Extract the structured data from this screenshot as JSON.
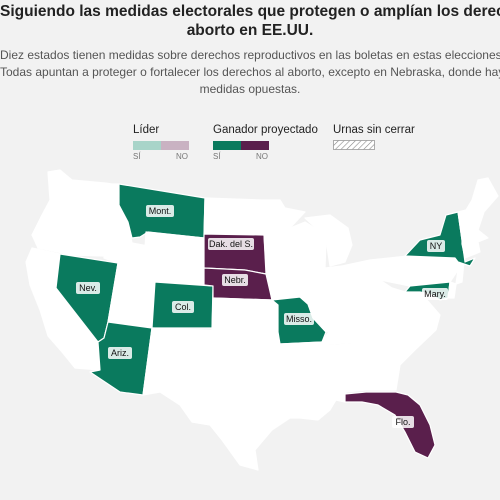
{
  "title_line1": "Siguiendo las medidas electorales que protegen o amplían los derechos",
  "title_line2": "aborto en EE.UU.",
  "subtitle_line1": "Diez estados tienen medidas sobre derechos reproductivos en las boletas en estas elecciones.",
  "subtitle_line2": "Todas apuntan a proteger o fortalecer los derechos al aborto, excepto en Nebraska, donde hay",
  "subtitle_line3": "medidas opuestas.",
  "legend": {
    "leader": {
      "title": "Líder",
      "yes": "SÍ",
      "no": "NO",
      "yes_color": "#a8d4c9",
      "no_color": "#c9b2c2"
    },
    "projected": {
      "title": "Ganador proyectado",
      "yes": "SÍ",
      "no": "NO",
      "yes_color": "#0a7a5e",
      "no_color": "#5a1f4c"
    },
    "pending": {
      "title": "Urnas sin cerrar"
    }
  },
  "colors": {
    "yes": "#0a7a5e",
    "no": "#5a1f4c",
    "none": "#ffffff",
    "border": "#cfcfcf"
  },
  "labels": {
    "mont": "Mont.",
    "dak": "Dak. del S.",
    "nebr": "Nebr.",
    "nev": "Nev.",
    "col": "Col.",
    "ariz": "Ariz.",
    "misso": "Misso.",
    "ny": "NY",
    "mary": "Mary.",
    "flo": "Flo."
  }
}
